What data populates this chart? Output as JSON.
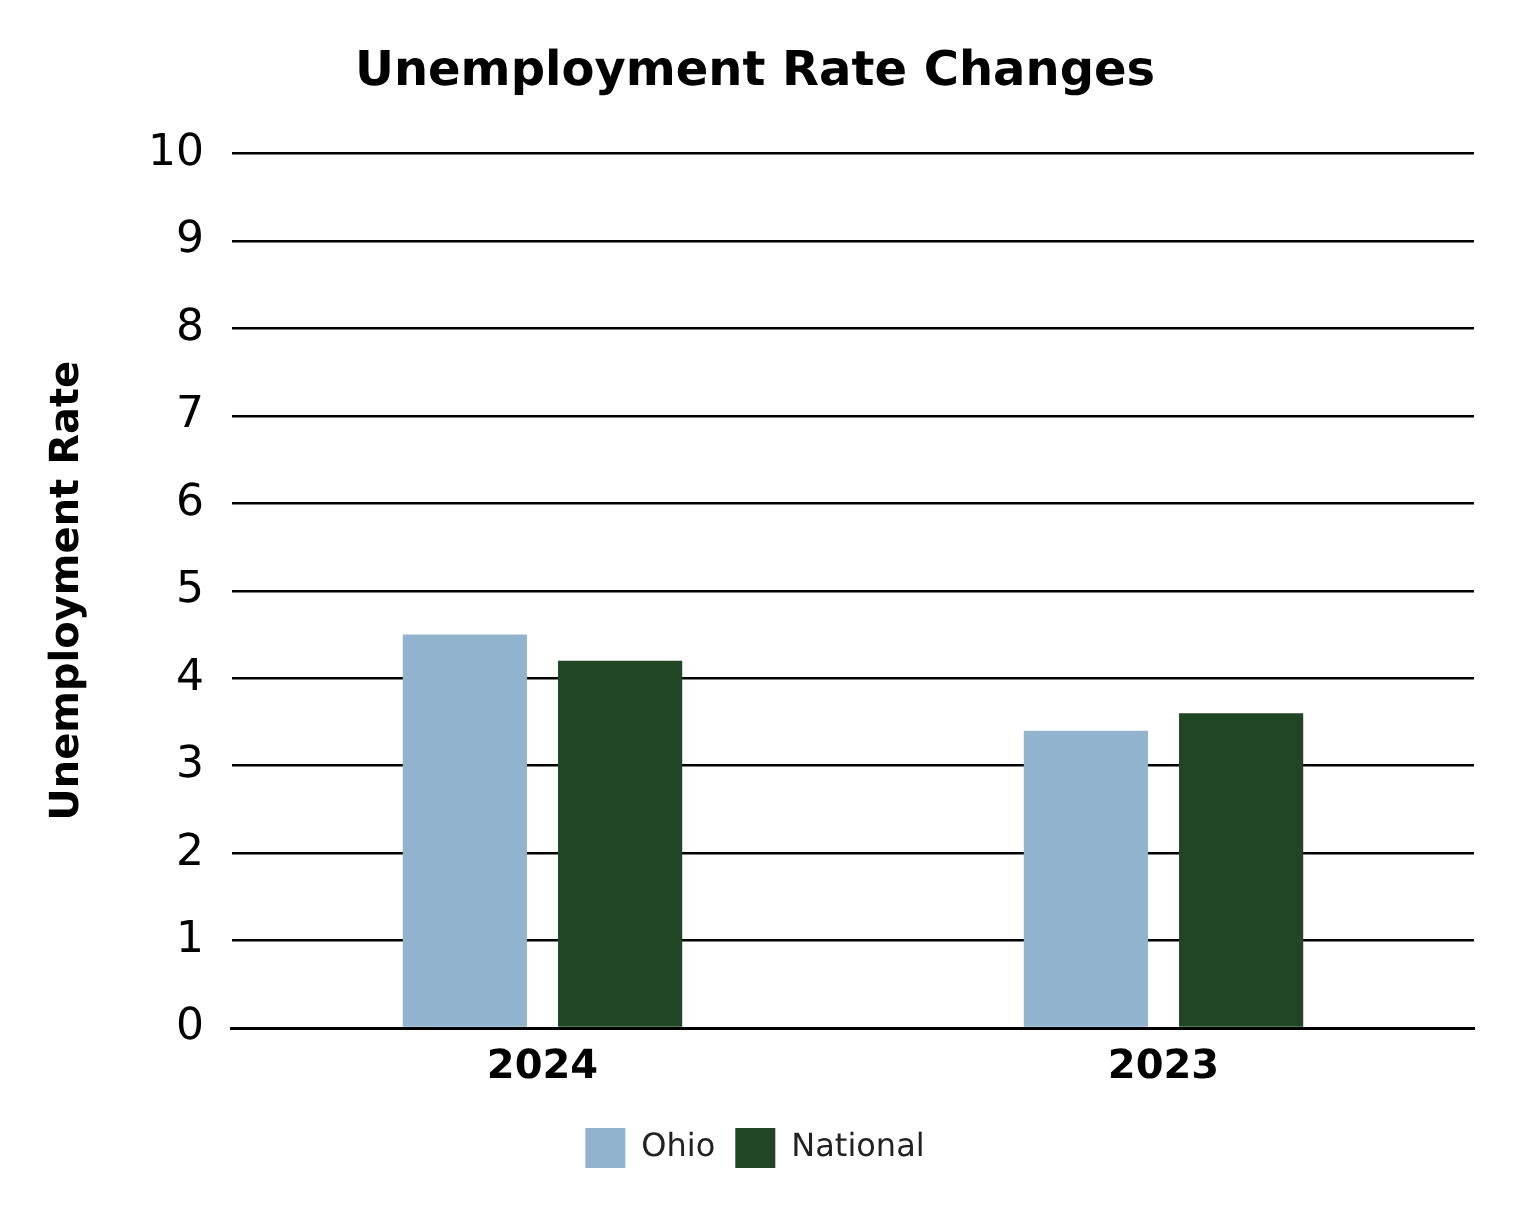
{
  "chart_data": {
    "type": "bar",
    "title": "Unemployment Rate Changes",
    "ylabel": "Unemployment Rate",
    "categories": [
      "2024",
      "2023"
    ],
    "series": [
      {
        "name": "Ohio",
        "color": "#91b3cd",
        "values": [
          4.5,
          3.4
        ]
      },
      {
        "name": "National",
        "color": "#214625",
        "values": [
          4.2,
          3.6
        ]
      }
    ],
    "ylim": [
      0,
      10
    ],
    "yticks": [
      0,
      1,
      2,
      3,
      4,
      5,
      6,
      7,
      8,
      9,
      10
    ],
    "grid": "y",
    "legend": "bottom"
  }
}
